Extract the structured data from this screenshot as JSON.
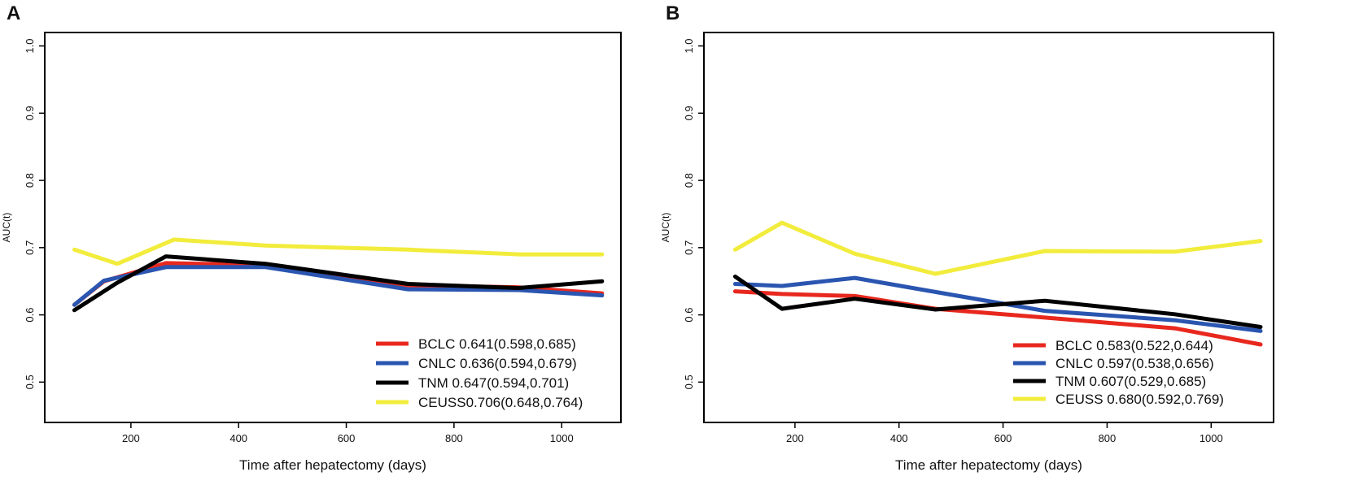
{
  "colors": {
    "BCLC": "#e8281e",
    "CNLC": "#2a55b0",
    "TNM": "#000000",
    "CEUSS": "#f2ec3c"
  },
  "chart_data": [
    {
      "type": "line",
      "panel_label": "A",
      "xlabel": "Time after hepatectomy (days)",
      "ylabel": "AUC(t)",
      "xlim": [
        40,
        1110
      ],
      "ylim": [
        0.44,
        1.02
      ],
      "xticks": [
        200,
        400,
        600,
        800,
        1000
      ],
      "yticks": [
        0.5,
        0.6,
        0.7,
        0.8,
        0.9,
        1.0
      ],
      "legend_position": "bottom-right",
      "series": [
        {
          "name": "BCLC",
          "label": "BCLC 0.641(0.598,0.685)",
          "x": [
            95,
            150,
            265,
            450,
            715,
            920,
            1075
          ],
          "y": [
            0.615,
            0.65,
            0.677,
            0.674,
            0.644,
            0.641,
            0.632
          ]
        },
        {
          "name": "CNLC",
          "label": "CNLC 0.636(0.594,0.679)",
          "x": [
            95,
            150,
            265,
            450,
            715,
            920,
            1075
          ],
          "y": [
            0.615,
            0.651,
            0.671,
            0.671,
            0.638,
            0.637,
            0.629
          ]
        },
        {
          "name": "TNM",
          "label": "TNM 0.647(0.594,0.701)",
          "x": [
            95,
            175,
            265,
            450,
            715,
            920,
            1075
          ],
          "y": [
            0.607,
            0.648,
            0.687,
            0.676,
            0.646,
            0.64,
            0.65
          ]
        },
        {
          "name": "CEUSS",
          "label": "CEUSS0.706(0.648,0.764)",
          "x": [
            95,
            175,
            280,
            450,
            715,
            920,
            1075
          ],
          "y": [
            0.697,
            0.676,
            0.712,
            0.703,
            0.697,
            0.69,
            0.69
          ]
        }
      ]
    },
    {
      "type": "line",
      "panel_label": "B",
      "xlabel": "Time after hepatectomy (days)",
      "ylabel": "AUC(t)",
      "xlim": [
        25,
        1120
      ],
      "ylim": [
        0.44,
        1.02
      ],
      "xticks": [
        200,
        400,
        600,
        800,
        1000
      ],
      "yticks": [
        0.5,
        0.6,
        0.7,
        0.8,
        0.9,
        1.0
      ],
      "legend_position": "bottom-right",
      "series": [
        {
          "name": "BCLC",
          "label": "BCLC 0.583(0.522,0.644)",
          "x": [
            85,
            175,
            315,
            470,
            680,
            930,
            1095
          ],
          "y": [
            0.635,
            0.631,
            0.628,
            0.609,
            0.596,
            0.58,
            0.556
          ]
        },
        {
          "name": "CNLC",
          "label": "CNLC 0.597(0.538,0.656)",
          "x": [
            85,
            175,
            315,
            470,
            680,
            930,
            1095
          ],
          "y": [
            0.646,
            0.643,
            0.655,
            0.634,
            0.606,
            0.592,
            0.576
          ]
        },
        {
          "name": "TNM",
          "label": "TNM 0.607(0.529,0.685)",
          "x": [
            85,
            175,
            315,
            470,
            680,
            930,
            1095
          ],
          "y": [
            0.657,
            0.609,
            0.624,
            0.608,
            0.621,
            0.601,
            0.582
          ]
        },
        {
          "name": "CEUSS",
          "label": "CEUSS 0.680(0.592,0.769)",
          "x": [
            85,
            175,
            315,
            470,
            680,
            930,
            1095
          ],
          "y": [
            0.697,
            0.737,
            0.691,
            0.661,
            0.695,
            0.694,
            0.71
          ]
        }
      ]
    }
  ]
}
